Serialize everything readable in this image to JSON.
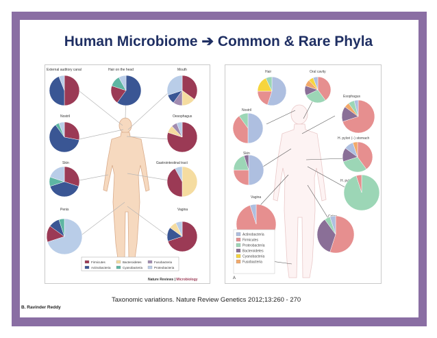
{
  "title": "Human Microbiome ➔ Common & Rare Phyla",
  "caption": "Taxonomic variations. Nature Review Genetics 2012;13:260 - 270",
  "author": "B. Ravinder Reddy",
  "colors": {
    "frame": "#8a6ea3",
    "title": "#1f2f63",
    "firmicutes": "#9b3a55",
    "actinobacteria": "#3a5694",
    "bacteroidetes": "#f5dca0",
    "cyanobacteria": "#5eb6a3",
    "fusobacteria": "#a18bb0",
    "proteobacteria": "#b9cde8"
  },
  "left": {
    "sites": [
      {
        "label": "External auditory canal",
        "slices": [
          {
            "phylum": "Firmicutes",
            "value": 50
          },
          {
            "phylum": "Actinobacteria",
            "value": 44
          },
          {
            "phylum": "Proteobacteria",
            "value": 6
          }
        ]
      },
      {
        "label": "Hair on the head",
        "slices": [
          {
            "phylum": "Actinobacteria",
            "value": 60
          },
          {
            "phylum": "Firmicutes",
            "value": 20
          },
          {
            "phylum": "Cyanobacteria",
            "value": 12
          },
          {
            "phylum": "Proteobacteria",
            "value": 8
          }
        ]
      },
      {
        "label": "Mouth",
        "slices": [
          {
            "phylum": "Firmicutes",
            "value": 35
          },
          {
            "phylum": "Bacteroidetes",
            "value": 15
          },
          {
            "phylum": "Fusobacteria",
            "value": 10
          },
          {
            "phylum": "Actinobacteria",
            "value": 10
          },
          {
            "phylum": "Proteobacteria",
            "value": 30
          }
        ]
      },
      {
        "label": "Nostril",
        "slices": [
          {
            "phylum": "Firmicutes",
            "value": 28
          },
          {
            "phylum": "Actinobacteria",
            "value": 62
          },
          {
            "phylum": "Cyanobacteria",
            "value": 4
          },
          {
            "phylum": "Proteobacteria",
            "value": 6
          }
        ]
      },
      {
        "label": "Oesophagus",
        "slices": [
          {
            "phylum": "Firmicutes",
            "value": 80
          },
          {
            "phylum": "Bacteroidetes",
            "value": 8
          },
          {
            "phylum": "Fusobacteria",
            "value": 6
          },
          {
            "phylum": "Proteobacteria",
            "value": 6
          }
        ]
      },
      {
        "label": "Skin",
        "slices": [
          {
            "phylum": "Firmicutes",
            "value": 30
          },
          {
            "phylum": "Actinobacteria",
            "value": 40
          },
          {
            "phylum": "Cyanobacteria",
            "value": 10
          },
          {
            "phylum": "Proteobacteria",
            "value": 20
          }
        ]
      },
      {
        "label": "Gastrointestinal tract",
        "slices": [
          {
            "phylum": "Bacteroidetes",
            "value": 50
          },
          {
            "phylum": "Firmicutes",
            "value": 42
          },
          {
            "phylum": "Proteobacteria",
            "value": 8
          }
        ]
      },
      {
        "label": "Penis",
        "slices": [
          {
            "phylum": "Proteobacteria",
            "value": 70
          },
          {
            "phylum": "Firmicutes",
            "value": 15
          },
          {
            "phylum": "Actinobacteria",
            "value": 10
          },
          {
            "phylum": "Cyanobacteria",
            "value": 5
          }
        ]
      },
      {
        "label": "Vagina",
        "slices": [
          {
            "phylum": "Firmicutes",
            "value": 70
          },
          {
            "phylum": "Actinobacteria",
            "value": 15
          },
          {
            "phylum": "Bacteroidetes",
            "value": 8
          },
          {
            "phylum": "Proteobacteria",
            "value": 7
          }
        ]
      }
    ],
    "legend": [
      {
        "name": "Firmicutes",
        "color": "#9b3a55"
      },
      {
        "name": "Bacteroidetes",
        "color": "#f5dca0"
      },
      {
        "name": "Fusobacteria",
        "color": "#a18bb0"
      },
      {
        "name": "Actinobacteria",
        "color": "#3a5694"
      },
      {
        "name": "Cyanobacteria",
        "color": "#5eb6a3"
      },
      {
        "name": "Proteobacteria",
        "color": "#b9cde8"
      }
    ],
    "credit_prefix": "Nature Reviews | ",
    "credit_suffix": "Microbiology"
  },
  "right": {
    "sites": [
      {
        "label": "Hair",
        "slices": [
          {
            "phylum": "Actinobacteria",
            "value": 55
          },
          {
            "phylum": "Firmicutes",
            "value": 20
          },
          {
            "phylum": "Cyanobacteria",
            "value": 18
          },
          {
            "phylum": "Proteobacteria",
            "value": 7
          }
        ]
      },
      {
        "label": "Oral cavity",
        "slices": [
          {
            "phylum": "Firmicutes",
            "value": 40
          },
          {
            "phylum": "Proteobacteria",
            "value": 28
          },
          {
            "phylum": "Bacteroidetes",
            "value": 12
          },
          {
            "phylum": "Fusobacteria",
            "value": 8
          },
          {
            "phylum": "Cyanobacteria",
            "value": 6
          },
          {
            "phylum": "Actinobacteria",
            "value": 6
          }
        ]
      },
      {
        "label": "Esophagus",
        "slices": [
          {
            "phylum": "Firmicutes",
            "value": 70
          },
          {
            "phylum": "Bacteroidetes",
            "value": 15
          },
          {
            "phylum": "Fusobacteria",
            "value": 5
          },
          {
            "phylum": "Proteobacteria",
            "value": 6
          },
          {
            "phylum": "Actinobacteria",
            "value": 4
          }
        ]
      },
      {
        "label": "Nostril",
        "slices": [
          {
            "phylum": "Actinobacteria",
            "value": 50
          },
          {
            "phylum": "Firmicutes",
            "value": 40
          },
          {
            "phylum": "Proteobacteria",
            "value": 10
          }
        ]
      },
      {
        "label": "H. pylori (−) stomach",
        "slices": [
          {
            "phylum": "Firmicutes",
            "value": 40
          },
          {
            "phylum": "Proteobacteria",
            "value": 30
          },
          {
            "phylum": "Bacteroidetes",
            "value": 15
          },
          {
            "phylum": "Actinobacteria",
            "value": 10
          },
          {
            "phylum": "Fusobacteria",
            "value": 5
          }
        ]
      },
      {
        "label": "Skin",
        "slices": [
          {
            "phylum": "Actinobacteria",
            "value": 50
          },
          {
            "phylum": "Firmicutes",
            "value": 25
          },
          {
            "phylum": "Proteobacteria",
            "value": 20
          },
          {
            "phylum": "Bacteroidetes",
            "value": 5
          }
        ]
      },
      {
        "label": "H. pylori (+) stomach",
        "slices": [
          {
            "phylum": "Proteobacteria",
            "value": 95
          },
          {
            "phylum": "Firmicutes",
            "value": 5
          }
        ]
      },
      {
        "label": "Vagina",
        "slices": [
          {
            "phylum": "Firmicutes",
            "value": 95
          },
          {
            "phylum": "Actinobacteria",
            "value": 5
          }
        ]
      },
      {
        "label": "Colon",
        "slices": [
          {
            "phylum": "Firmicutes",
            "value": 55
          },
          {
            "phylum": "Bacteroidetes",
            "value": 35
          },
          {
            "phylum": "Proteobacteria",
            "value": 5
          },
          {
            "phylum": "Actinobacteria",
            "value": 5
          }
        ]
      }
    ],
    "legend": [
      {
        "name": "Actinobacteria",
        "color": "#aebfe0"
      },
      {
        "name": "Firmicutes",
        "color": "#e68f8f"
      },
      {
        "name": "Proteobacteria",
        "color": "#9cd6b6"
      },
      {
        "name": "Bacteroidetes",
        "color": "#8a6f97"
      },
      {
        "name": "Cyanobacteria",
        "color": "#f6d53d"
      },
      {
        "name": "Fusobacteria",
        "color": "#f2a96a"
      }
    ],
    "panel_letter": "A"
  }
}
